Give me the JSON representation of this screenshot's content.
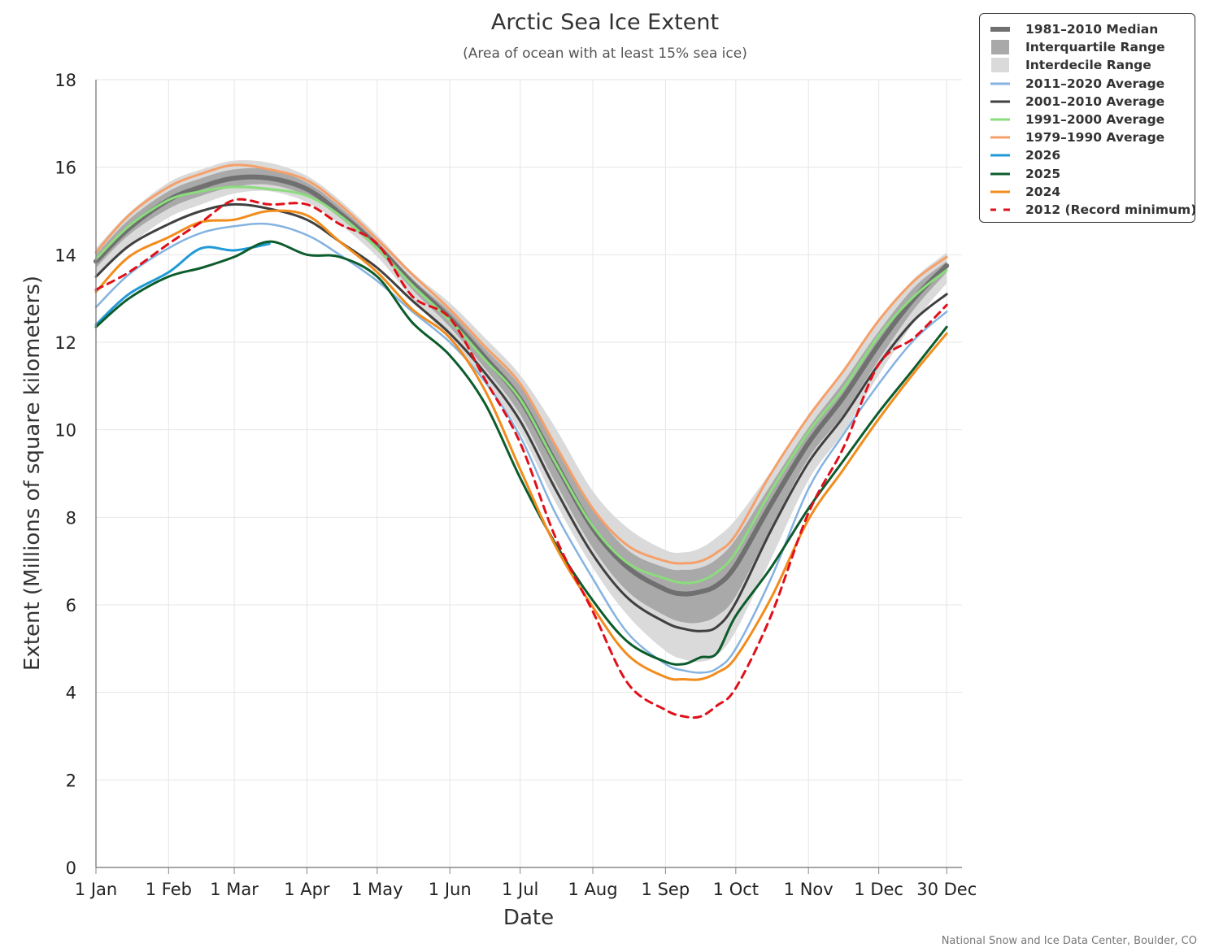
{
  "chart_data": {
    "type": "line",
    "title": "Arctic Sea Ice Extent",
    "subtitle": "(Area of ocean with at least 15% sea ice)",
    "xlabel": "Date",
    "ylabel": "Extent (Millions of square kilometers)",
    "ylim": [
      0,
      18
    ],
    "yticks": [
      0,
      2,
      4,
      6,
      8,
      10,
      12,
      14,
      16,
      18
    ],
    "xlim": [
      1,
      366
    ],
    "xticks": [
      {
        "day": 1,
        "label": "1 Jan"
      },
      {
        "day": 32,
        "label": "1 Feb"
      },
      {
        "day": 60,
        "label": "1 Mar"
      },
      {
        "day": 91,
        "label": "1 Apr"
      },
      {
        "day": 121,
        "label": "1 May"
      },
      {
        "day": 152,
        "label": "1 Jun"
      },
      {
        "day": 182,
        "label": "1 Jul"
      },
      {
        "day": 213,
        "label": "1 Aug"
      },
      {
        "day": 244,
        "label": "1 Sep"
      },
      {
        "day": 274,
        "label": "1 Oct"
      },
      {
        "day": 305,
        "label": "1 Nov"
      },
      {
        "day": 335,
        "label": "1 Dec"
      },
      {
        "day": 364,
        "label": "30 Dec"
      }
    ],
    "grid": true,
    "legend_position": "top-right",
    "x": [
      1,
      15,
      32,
      46,
      60,
      75,
      91,
      105,
      121,
      136,
      152,
      167,
      182,
      197,
      213,
      228,
      244,
      252,
      259,
      266,
      274,
      289,
      305,
      320,
      335,
      350,
      364
    ],
    "bands": [
      {
        "name": "Interdecile Range",
        "color": "#dadada",
        "lower": [
          13.45,
          14.2,
          14.85,
          15.15,
          15.4,
          15.45,
          15.2,
          14.7,
          13.95,
          13.0,
          12.05,
          11.1,
          9.95,
          8.35,
          6.85,
          5.75,
          4.95,
          4.75,
          4.7,
          4.85,
          5.4,
          7.05,
          8.85,
          9.95,
          11.25,
          12.45,
          13.35
        ],
        "upper": [
          14.15,
          14.95,
          15.65,
          15.95,
          16.15,
          16.1,
          15.8,
          15.25,
          14.45,
          13.6,
          12.9,
          12.1,
          11.25,
          10.05,
          8.6,
          7.75,
          7.25,
          7.2,
          7.3,
          7.55,
          7.95,
          9.05,
          10.3,
          11.35,
          12.5,
          13.45,
          14.05
        ]
      },
      {
        "name": "Interquartile Range",
        "color": "#a9a9a9",
        "lower": [
          13.7,
          14.45,
          15.05,
          15.35,
          15.55,
          15.6,
          15.35,
          14.85,
          14.1,
          13.2,
          12.35,
          11.4,
          10.35,
          8.8,
          7.3,
          6.3,
          5.75,
          5.6,
          5.6,
          5.75,
          6.2,
          7.75,
          9.35,
          10.35,
          11.6,
          12.75,
          13.6
        ],
        "upper": [
          14.0,
          14.8,
          15.45,
          15.75,
          15.95,
          15.95,
          15.65,
          15.1,
          14.3,
          13.45,
          12.7,
          11.85,
          11.0,
          9.7,
          8.2,
          7.25,
          6.85,
          6.8,
          6.85,
          7.05,
          7.5,
          8.75,
          10.05,
          11.1,
          12.25,
          13.25,
          13.85
        ]
      }
    ],
    "series": [
      {
        "name": "1981–2010 Median",
        "color": "#707070",
        "width": 6,
        "dash": "",
        "values": [
          13.85,
          14.6,
          15.25,
          15.55,
          15.75,
          15.75,
          15.5,
          14.95,
          14.2,
          13.35,
          12.55,
          11.65,
          10.7,
          9.25,
          7.75,
          6.85,
          6.35,
          6.25,
          6.3,
          6.45,
          6.9,
          8.3,
          9.7,
          10.75,
          11.95,
          13.0,
          13.75
        ]
      },
      {
        "name": "2011–2020 Average",
        "color": "#85b3e0",
        "width": 2.5,
        "dash": "",
        "values": [
          12.8,
          13.55,
          14.15,
          14.5,
          14.65,
          14.7,
          14.45,
          14.0,
          13.4,
          12.7,
          12.0,
          11.1,
          9.85,
          8.1,
          6.6,
          5.35,
          4.65,
          4.5,
          4.45,
          4.55,
          5.0,
          6.6,
          8.65,
          9.9,
          11.05,
          12.05,
          12.7
        ]
      },
      {
        "name": "2001–2010 Average",
        "color": "#404040",
        "width": 3,
        "dash": "",
        "values": [
          13.5,
          14.2,
          14.7,
          15.0,
          15.15,
          15.05,
          14.8,
          14.3,
          13.7,
          12.95,
          12.2,
          11.3,
          10.2,
          8.65,
          7.15,
          6.15,
          5.6,
          5.45,
          5.4,
          5.5,
          6.05,
          7.7,
          9.25,
          10.3,
          11.5,
          12.5,
          13.1
        ]
      },
      {
        "name": "1991–2000 Average",
        "color": "#8bdc7c",
        "width": 3,
        "dash": "",
        "values": [
          13.9,
          14.65,
          15.25,
          15.45,
          15.55,
          15.5,
          15.35,
          14.9,
          14.15,
          13.3,
          12.5,
          11.6,
          10.7,
          9.25,
          7.8,
          6.95,
          6.6,
          6.5,
          6.55,
          6.75,
          7.2,
          8.6,
          9.95,
          10.95,
          12.15,
          13.05,
          13.65
        ]
      },
      {
        "name": "1979–1990 Average",
        "color": "#f5a06a",
        "width": 3,
        "dash": "",
        "values": [
          14.05,
          14.9,
          15.55,
          15.85,
          16.05,
          15.95,
          15.7,
          15.15,
          14.35,
          13.55,
          12.75,
          11.9,
          11.05,
          9.65,
          8.2,
          7.35,
          7.0,
          6.95,
          7.0,
          7.2,
          7.6,
          9.0,
          10.3,
          11.35,
          12.5,
          13.4,
          13.95
        ]
      },
      {
        "name": "2026",
        "color": "#1f9ad6",
        "width": 3,
        "dash": "",
        "values": [
          12.4,
          13.1,
          13.6,
          14.15,
          14.1,
          14.25,
          null,
          null,
          null,
          null,
          null,
          null,
          null,
          null,
          null,
          null,
          null,
          null,
          null,
          null,
          null,
          null,
          null,
          null,
          null,
          null,
          null
        ]
      },
      {
        "name": "2025",
        "color": "#0c5c2c",
        "width": 3,
        "dash": "",
        "values": [
          12.35,
          13.0,
          13.5,
          13.7,
          13.95,
          14.3,
          14.0,
          13.95,
          13.5,
          12.45,
          11.7,
          10.6,
          8.9,
          7.4,
          6.1,
          5.15,
          4.7,
          4.65,
          4.8,
          4.9,
          5.75,
          6.85,
          8.2,
          9.3,
          10.4,
          11.4,
          12.35
        ]
      },
      {
        "name": "2024",
        "color": "#f28c1c",
        "width": 3,
        "dash": "",
        "values": [
          13.15,
          13.95,
          14.4,
          14.75,
          14.8,
          15.0,
          14.9,
          14.3,
          13.6,
          12.75,
          12.1,
          10.9,
          9.1,
          7.35,
          5.95,
          4.85,
          4.35,
          4.3,
          4.3,
          4.45,
          4.8,
          6.15,
          7.95,
          9.1,
          10.25,
          11.3,
          12.2
        ]
      },
      {
        "name": "2012 (Record minimum)",
        "color": "#e0101a",
        "width": 3,
        "dash": "9,7",
        "values": [
          13.2,
          13.6,
          14.25,
          14.75,
          15.25,
          15.15,
          15.15,
          14.7,
          14.25,
          13.05,
          12.55,
          11.15,
          9.7,
          7.55,
          5.85,
          4.2,
          3.6,
          3.45,
          3.45,
          3.7,
          4.1,
          5.75,
          8.1,
          9.6,
          11.5,
          12.1,
          12.85
        ]
      }
    ],
    "legend": [
      {
        "label": "1981–2010 Median",
        "kind": "line",
        "color": "#707070",
        "width": 6
      },
      {
        "label": "Interquartile Range",
        "kind": "box",
        "color": "#a9a9a9"
      },
      {
        "label": "Interdecile Range",
        "kind": "box",
        "color": "#dadada"
      },
      {
        "label": "2011–2020 Average",
        "kind": "line",
        "color": "#85b3e0",
        "width": 3
      },
      {
        "label": "2001–2010 Average",
        "kind": "line",
        "color": "#404040",
        "width": 3
      },
      {
        "label": "1991–2000 Average",
        "kind": "line",
        "color": "#8bdc7c",
        "width": 3
      },
      {
        "label": "1979–1990 Average",
        "kind": "line",
        "color": "#f5a06a",
        "width": 3
      },
      {
        "label": "2026",
        "kind": "line",
        "color": "#1f9ad6",
        "width": 3
      },
      {
        "label": "2025",
        "kind": "line",
        "color": "#0c5c2c",
        "width": 3
      },
      {
        "label": "2024",
        "kind": "line",
        "color": "#f28c1c",
        "width": 3
      },
      {
        "label": "2012 (Record minimum)",
        "kind": "dash",
        "color": "#e0101a",
        "width": 3
      }
    ]
  },
  "credit": "National Snow and Ice Data Center, Boulder, CO"
}
